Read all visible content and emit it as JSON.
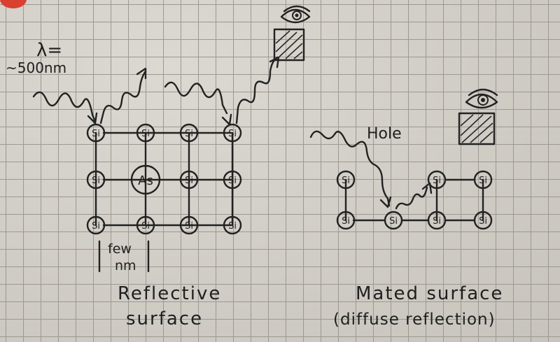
{
  "colors": {
    "paper": "#d4d0c8",
    "grid": "#9d9891",
    "ink": "#222222",
    "mark": "#d9402f"
  },
  "wavelength": {
    "symbol": "λ=",
    "value": "~500nm"
  },
  "scale_label": {
    "line1": "few",
    "line2": "nm"
  },
  "hole_label": "Hole",
  "atoms": {
    "silicon": "Si",
    "arsenic": "As"
  },
  "captions": {
    "left_line1": "Reflective",
    "left_line2": "surface",
    "right_line1": "Mated surface",
    "right_line2": "(diffuse reflection)"
  },
  "icons": [
    "eye-icon",
    "detector-square-icon"
  ]
}
